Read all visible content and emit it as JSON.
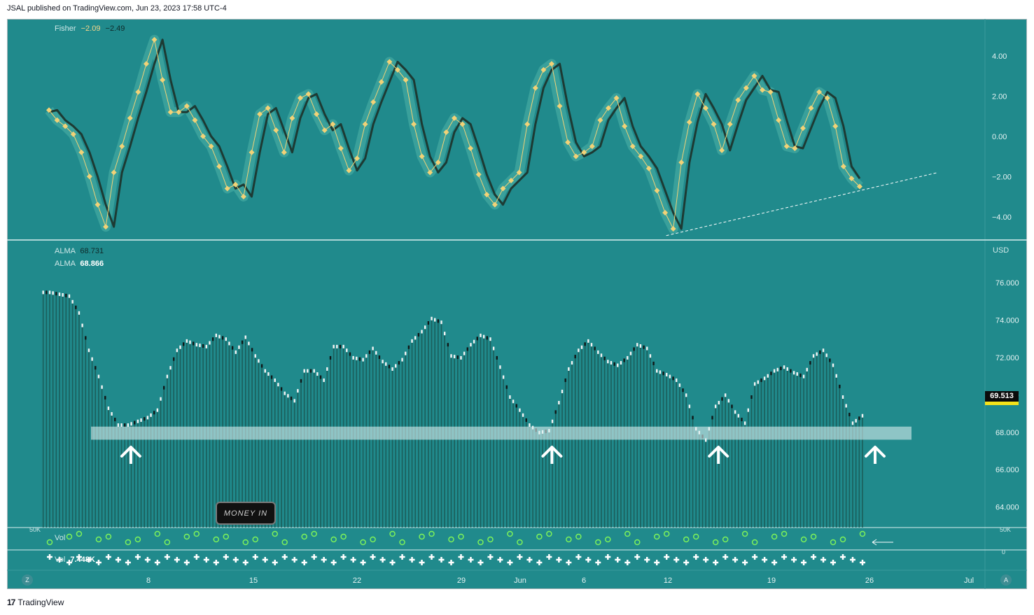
{
  "publisher": "JSAL published on TradingView.com, Jun 23, 2023 17:58 UTC-4",
  "footer": {
    "logo": "17",
    "brand": "TradingView"
  },
  "indicators": {
    "fisher": {
      "name": "Fisher",
      "value1": "−2.09",
      "value2": "−2.49"
    },
    "alma1": {
      "name": "ALMA",
      "value": "68.731"
    },
    "alma2": {
      "name": "ALMA",
      "value": "68.866"
    },
    "vol1": {
      "name": "Vol"
    },
    "vol2": {
      "name": "Vol",
      "value": "7.448K"
    }
  },
  "price_axis": {
    "currency": "USD",
    "last_price": "69.513"
  },
  "annotation_box": "MONEY IN",
  "corner_buttons": {
    "left": "Z",
    "right": "A"
  },
  "chart_data": [
    {
      "type": "line",
      "panel": "Fisher",
      "title": "Fisher",
      "y_ticks": [
        "4.00",
        "2.00",
        "0.00",
        "−2.00",
        "−4.00"
      ],
      "ylim": [
        -4.6,
        5.0
      ],
      "series": [
        {
          "name": "Fisher",
          "values": [
            1.3,
            0.8,
            0.5,
            0.1,
            -0.8,
            -2.0,
            -3.4,
            -4.5,
            -1.8,
            -0.5,
            0.9,
            2.2,
            3.6,
            4.8,
            2.8,
            1.2,
            1.2,
            1.5,
            0.8,
            0,
            -0.5,
            -1.5,
            -2.6,
            -2.4,
            -3.0,
            -0.8,
            1.1,
            1.4,
            0.3,
            -0.8,
            0.9,
            1.9,
            2.1,
            1.1,
            0.3,
            0.6,
            -0.6,
            -1.7,
            -1.1,
            0.6,
            1.7,
            2.7,
            3.7,
            3.3,
            2.8,
            0.6,
            -1.0,
            -1.8,
            -1.3,
            0.2,
            0.9,
            0.6,
            -0.6,
            -1.9,
            -2.9,
            -3.4,
            -2.6,
            -2.2,
            -1.8,
            0.6,
            2.4,
            3.3,
            3.6,
            1.5,
            -0.3,
            -1.0,
            -0.8,
            -0.5,
            0.8,
            1.4,
            1.9,
            0.5,
            -0.5,
            -1.0,
            -1.6,
            -2.7,
            -3.8,
            -4.6,
            -1.3,
            0.7,
            2.1,
            1.4,
            0.6,
            -0.7,
            0.6,
            1.8,
            2.4,
            3.0,
            2.3,
            2.2,
            0.8,
            -0.5,
            -0.6,
            0.4,
            1.4,
            2.2,
            1.9,
            0.5,
            -1.5,
            -2.1,
            -2.5
          ]
        },
        {
          "name": "Trigger",
          "values": [
            1.2,
            1.3,
            0.8,
            0.5,
            0.1,
            -0.8,
            -2.0,
            -3.4,
            -4.5,
            -1.8,
            -0.5,
            0.9,
            2.2,
            3.6,
            4.8,
            2.8,
            1.2,
            1.2,
            1.5,
            0.8,
            0,
            -0.5,
            -1.5,
            -2.6,
            -2.4,
            -3.0,
            -0.8,
            1.1,
            1.4,
            0.3,
            -0.8,
            0.9,
            1.9,
            2.1,
            1.1,
            0.3,
            0.6,
            -0.6,
            -1.7,
            -1.1,
            0.6,
            1.7,
            2.7,
            3.7,
            3.3,
            2.8,
            0.6,
            -1.0,
            -1.8,
            -1.3,
            0.2,
            0.9,
            0.6,
            -0.6,
            -1.9,
            -2.9,
            -3.4,
            -2.6,
            -2.2,
            -1.8,
            0.6,
            2.4,
            3.3,
            3.6,
            1.5,
            -0.3,
            -1.0,
            -0.8,
            -0.5,
            0.8,
            1.4,
            1.9,
            0.5,
            -0.5,
            -1.0,
            -1.6,
            -2.7,
            -3.8,
            -4.6,
            -1.3,
            0.7,
            2.1,
            1.4,
            0.6,
            -0.7,
            0.6,
            1.8,
            2.4,
            3.0,
            2.3,
            2.2,
            0.8,
            -0.5,
            -0.6,
            0.4,
            1.4,
            2.2,
            1.9,
            0.5,
            -1.5,
            -2.1
          ]
        }
      ],
      "trendline": {
        "from": [
          77,
          -4.8
        ],
        "to": [
          1.08,
          -1.8
        ],
        "note": "from x-index 77 to beyond the last bar"
      }
    },
    {
      "type": "bar",
      "panel": "Price (USD)",
      "ylabel": "USD",
      "y_ticks": [
        "76.000",
        "74.000",
        "72.000",
        "70.000",
        "68.000",
        "66.000",
        "64.000"
      ],
      "ylim": [
        62.9,
        77.2
      ],
      "values": [
        75.5,
        75.4,
        75.3,
        74.4,
        72.4,
        71.0,
        69.3,
        68.4,
        68.4,
        68.6,
        68.8,
        69.2,
        71.0,
        72.4,
        72.9,
        72.7,
        72.6,
        73.2,
        73.0,
        72.3,
        73.1,
        72.1,
        71.3,
        70.8,
        70.1,
        69.7,
        71.3,
        71.3,
        70.8,
        72.6,
        72.6,
        72.0,
        71.9,
        72.5,
        71.8,
        71.4,
        71.9,
        72.9,
        73.4,
        74.1,
        73.9,
        72.1,
        72.0,
        72.7,
        73.2,
        73.0,
        71.5,
        69.9,
        69.2,
        68.4,
        68.0,
        68.1,
        69.6,
        71.4,
        72.4,
        72.9,
        72.3,
        71.8,
        71.6,
        72.0,
        72.7,
        72.5,
        71.3,
        71.1,
        70.8,
        70.0,
        68.2,
        67.6,
        69.4,
        70.0,
        69.1,
        68.5,
        70.6,
        70.9,
        71.3,
        71.5,
        71.2,
        71.0,
        72.1,
        72.4,
        71.6,
        69.9,
        68.5,
        68.9
      ]
    },
    {
      "type": "scatter",
      "panel": "Vol",
      "y_ticks": [
        "50K",
        "0"
      ],
      "x_ticks": [
        "8",
        "15",
        "22",
        "29",
        "Jun",
        "6",
        "12",
        "19",
        "26",
        "Jul"
      ]
    }
  ],
  "zone": {
    "label": "",
    "price_range": [
      67.6,
      68.3
    ]
  },
  "arrows_at_bar_index": [
    7,
    50,
    67,
    83
  ]
}
